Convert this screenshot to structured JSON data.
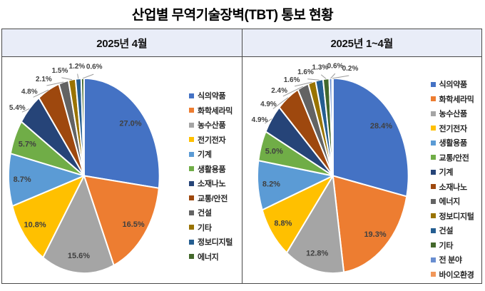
{
  "title": "산업별 무역기술장벽(TBT) 통보 현황",
  "style": {
    "header_fill": "#E9EDF8",
    "border_color": "#4A4A4A",
    "label_color": "#404040",
    "leader_color": "#9B9B9B",
    "legend_text": "#262626"
  },
  "chart_data": [
    {
      "type": "pie",
      "title": "2025년 4월",
      "unit": "%",
      "legend_position": "right",
      "inside_label_count": 6,
      "slices": [
        {
          "label": "식의약품",
          "value": 27.0,
          "color": "#4472C4"
        },
        {
          "label": "화학세라믹",
          "value": 16.5,
          "color": "#ED7D31"
        },
        {
          "label": "농수산품",
          "value": 15.6,
          "color": "#A5A5A5"
        },
        {
          "label": "전기전자",
          "value": 10.8,
          "color": "#FFC000"
        },
        {
          "label": "기계",
          "value": 8.7,
          "color": "#5B9BD5"
        },
        {
          "label": "생활용품",
          "value": 5.7,
          "color": "#70AD47"
        },
        {
          "label": "소재나노",
          "value": 5.4,
          "color": "#264478"
        },
        {
          "label": "교통/안전",
          "value": 4.8,
          "color": "#9E480E"
        },
        {
          "label": "건설",
          "value": 2.1,
          "color": "#636363"
        },
        {
          "label": "기타",
          "value": 1.5,
          "color": "#997300"
        },
        {
          "label": "정보디지털",
          "value": 1.2,
          "color": "#255E91"
        },
        {
          "label": "에너지",
          "value": 0.6,
          "color": "#43682B"
        }
      ]
    },
    {
      "type": "pie",
      "title": "2025년 1~4월",
      "unit": "%",
      "legend_position": "right",
      "inside_label_count": 6,
      "slices": [
        {
          "label": "식의약품",
          "value": 28.4,
          "color": "#4472C4"
        },
        {
          "label": "화학세라믹",
          "value": 19.3,
          "color": "#ED7D31"
        },
        {
          "label": "농수산품",
          "value": 12.8,
          "color": "#A5A5A5"
        },
        {
          "label": "전기전자",
          "value": 8.8,
          "color": "#FFC000"
        },
        {
          "label": "생활용품",
          "value": 8.2,
          "color": "#5B9BD5"
        },
        {
          "label": "교통/안전",
          "value": 5.0,
          "color": "#70AD47"
        },
        {
          "label": "기계",
          "value": 4.9,
          "color": "#264478"
        },
        {
          "label": "소재나노",
          "value": 4.9,
          "color": "#9E480E"
        },
        {
          "label": "에너지",
          "value": 2.4,
          "color": "#636363"
        },
        {
          "label": "정보디지털",
          "value": 1.6,
          "color": "#997300"
        },
        {
          "label": "건설",
          "value": 1.6,
          "color": "#255E91"
        },
        {
          "label": "기타",
          "value": 1.3,
          "color": "#43682B"
        },
        {
          "label": "전 분야",
          "value": 0.6,
          "color": "#698ED0"
        },
        {
          "label": "바이오환경",
          "value": 0.2,
          "color": "#F1975A"
        }
      ]
    }
  ]
}
